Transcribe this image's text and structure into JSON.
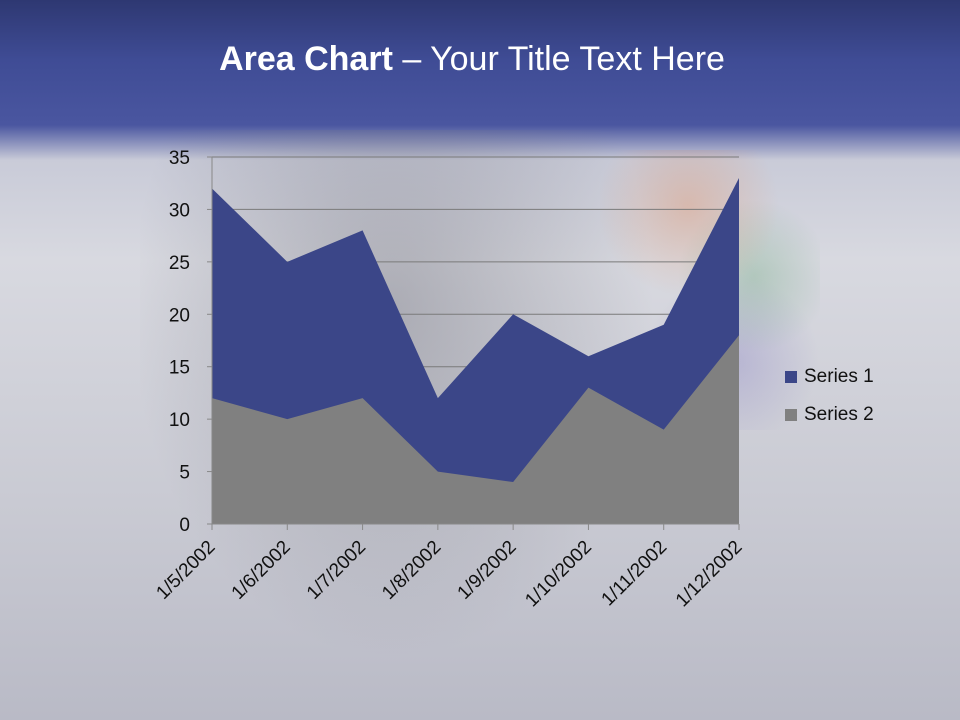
{
  "slide": {
    "title_bold": "Area Chart",
    "title_rest": " – Your Title Text Here"
  },
  "chart_data": {
    "type": "area",
    "title": "",
    "xlabel": "",
    "ylabel": "",
    "categories": [
      "1/5/2002",
      "1/6/2002",
      "1/7/2002",
      "1/8/2002",
      "1/9/2002",
      "1/10/2002",
      "1/11/2002",
      "1/12/2002"
    ],
    "series": [
      {
        "name": "Series 1",
        "color": "#3b4688",
        "values": [
          32,
          25,
          28,
          12,
          20,
          16,
          19,
          33
        ]
      },
      {
        "name": "Series 2",
        "color": "#808080",
        "values": [
          12,
          10,
          12,
          5,
          4,
          13,
          9,
          18
        ]
      }
    ],
    "ylim": [
      0,
      35
    ],
    "yticks": [
      "0",
      "5",
      "10",
      "15",
      "20",
      "25",
      "30",
      "35"
    ],
    "grid": true,
    "stacked": false,
    "legend": "right"
  }
}
